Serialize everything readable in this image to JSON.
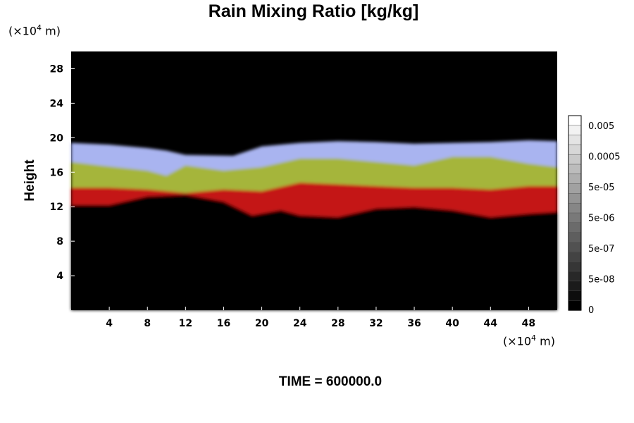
{
  "chart_data": {
    "type": "heatmap",
    "title": "Rain Mixing Ratio [kg/kg]",
    "xlabel": "",
    "ylabel": "Height",
    "x_unit_exponent": "4",
    "y_unit_exponent": "4",
    "unit_prefix": "(×10",
    "unit_suffix": " m)",
    "xlim": [
      0,
      51
    ],
    "ylim": [
      0,
      30
    ],
    "x_ticks": [
      "4",
      "8",
      "12",
      "16",
      "20",
      "24",
      "28",
      "32",
      "36",
      "40",
      "44",
      "48"
    ],
    "y_ticks": [
      "4",
      "8",
      "12",
      "16",
      "20",
      "24",
      "28"
    ],
    "colorbar": {
      "scale": "log",
      "labels": [
        "0.005",
        "0.0005",
        "5e-05",
        "5e-06",
        "5e-07",
        "5e-08",
        "0"
      ]
    },
    "bands": [
      {
        "color": "#a9b4f0",
        "name": "blue",
        "points": [
          [
            0,
            19.4
          ],
          [
            4,
            19.2
          ],
          [
            8,
            18.8
          ],
          [
            10,
            18.5
          ],
          [
            12,
            18.0
          ],
          [
            17,
            17.9
          ],
          [
            20,
            19.0
          ],
          [
            24,
            19.4
          ],
          [
            28,
            19.6
          ],
          [
            32,
            19.5
          ],
          [
            36,
            19.3
          ],
          [
            40,
            19.4
          ],
          [
            44,
            19.5
          ],
          [
            48,
            19.7
          ],
          [
            51,
            19.6
          ]
        ]
      },
      {
        "color": "#a5b53a",
        "name": "yellow-green",
        "points": [
          [
            0,
            17.2
          ],
          [
            3,
            16.8
          ],
          [
            8,
            16.2
          ],
          [
            10,
            15.6
          ],
          [
            12,
            16.8
          ],
          [
            16,
            16.2
          ],
          [
            20,
            16.6
          ],
          [
            24,
            17.6
          ],
          [
            28,
            17.6
          ],
          [
            32,
            17.2
          ],
          [
            36,
            16.8
          ],
          [
            40,
            17.8
          ],
          [
            44,
            17.8
          ],
          [
            48,
            17.0
          ],
          [
            51,
            16.6
          ]
        ]
      },
      {
        "color": "#c41212",
        "name": "red",
        "points": [
          [
            0,
            14.2
          ],
          [
            4,
            14.2
          ],
          [
            8,
            14.0
          ],
          [
            12,
            13.6
          ],
          [
            16,
            14.0
          ],
          [
            20,
            13.8
          ],
          [
            24,
            14.8
          ],
          [
            28,
            14.6
          ],
          [
            32,
            14.4
          ],
          [
            36,
            14.2
          ],
          [
            40,
            14.2
          ],
          [
            44,
            14.0
          ],
          [
            48,
            14.4
          ],
          [
            51,
            14.4
          ]
        ]
      },
      {
        "color": "#000000",
        "name": "clear",
        "points": [
          [
            0,
            12.2
          ],
          [
            4,
            12.2
          ],
          [
            8,
            13.2
          ],
          [
            12,
            13.4
          ],
          [
            16,
            12.6
          ],
          [
            19,
            11.0
          ],
          [
            22,
            11.6
          ],
          [
            24,
            11.0
          ],
          [
            28,
            10.8
          ],
          [
            32,
            11.8
          ],
          [
            36,
            12.0
          ],
          [
            40,
            11.6
          ],
          [
            44,
            10.8
          ],
          [
            48,
            11.2
          ],
          [
            51,
            11.4
          ]
        ]
      }
    ]
  }
}
